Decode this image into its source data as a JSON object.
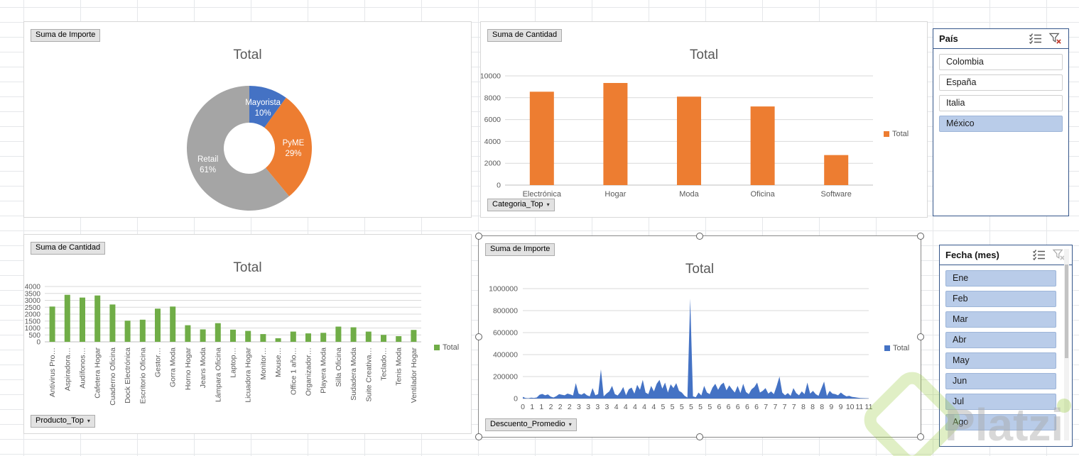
{
  "colors": {
    "accent_blue": "#4472C4",
    "accent_orange": "#ED7D31",
    "accent_gray": "#A5A5A5",
    "accent_green": "#70AD47",
    "axis_text": "#595959",
    "chart_grid": "#D9D9D9",
    "slicer_selected_fill": "#B9CCE9",
    "slicer_border": "#35568A"
  },
  "chart_data": [
    {
      "id": "segment-donut-chart",
      "type": "pie",
      "donut": true,
      "title": "Total",
      "field_button": "Suma de Importe",
      "categories": [
        "Mayorista",
        "PyME",
        "Retail"
      ],
      "values_pct": [
        10,
        29,
        61
      ],
      "slice_colors": [
        "#4472C4",
        "#ED7D31",
        "#A5A5A5"
      ],
      "data_labels": [
        "Mayorista 10%",
        "PyME 29%",
        "Retail 61%"
      ],
      "legend_position": "none"
    },
    {
      "id": "category-bar-chart",
      "type": "bar",
      "title": "Total",
      "field_button": "Suma de Cantidad",
      "axis_field_button": "Categoria_Top",
      "categories": [
        "Electrónica",
        "Hogar",
        "Moda",
        "Oficina",
        "Software"
      ],
      "values": [
        8550,
        9350,
        8100,
        7200,
        2750
      ],
      "ylim": [
        0,
        10000
      ],
      "ytick_step": 2000,
      "grid": true,
      "legend": "Total",
      "legend_position": "right",
      "color": "#ED7D31"
    },
    {
      "id": "product-bar-chart",
      "type": "bar",
      "title": "Total",
      "field_button": "Suma de Cantidad",
      "axis_field_button": "Producto_Top",
      "categories": [
        "Antivirus Pro…",
        "Aspiradora…",
        "Audífonos…",
        "Cafetera Hogar",
        "Cuaderno Oficina",
        "Dock Electrónica",
        "Escritorio Oficina",
        "Gestor…",
        "Gorra Moda",
        "Horno Hogar",
        "Jeans Moda",
        "Lámpara Oficina",
        "Laptop…",
        "Licuadora Hogar",
        "Monitor…",
        "Mouse…",
        "Office 1 año…",
        "Organizador…",
        "Playera Moda",
        "Silla Oficina",
        "Sudadera Moda",
        "Suite Creativa…",
        "Teclado…",
        "Tenis Moda",
        "Ventilador Hogar"
      ],
      "values": [
        2550,
        3400,
        3200,
        3350,
        2700,
        1530,
        1600,
        2400,
        2550,
        1200,
        900,
        1350,
        880,
        790,
        560,
        260,
        740,
        610,
        650,
        1100,
        1050,
        740,
        500,
        410,
        860
      ],
      "ylim": [
        0,
        4000
      ],
      "ytick_step": 500,
      "grid": true,
      "legend": "Total",
      "legend_position": "right",
      "color": "#70AD47",
      "rotated_labels": true
    },
    {
      "id": "discount-area-chart",
      "type": "area",
      "title": "Total",
      "field_button": "Suma de Importe",
      "axis_field_button": "Descuento_Promedio",
      "x_tick_labels": [
        "0",
        "1",
        "1",
        "2",
        "2",
        "2",
        "3",
        "3",
        "3",
        "3",
        "4",
        "4",
        "4",
        "4",
        "4",
        "5",
        "5",
        "5",
        "5",
        "5",
        "5",
        "6",
        "6",
        "6",
        "6",
        "6",
        "7",
        "7",
        "7",
        "7",
        "8",
        "8",
        "8",
        "9",
        "9",
        "10",
        "11",
        "11"
      ],
      "values": [
        15000,
        5000,
        3000,
        8000,
        6000,
        10000,
        35000,
        42000,
        30000,
        38000,
        18000,
        10000,
        22000,
        40000,
        35000,
        30000,
        45000,
        38000,
        28000,
        140000,
        45000,
        35000,
        50000,
        30000,
        20000,
        95000,
        30000,
        40000,
        265000,
        20000,
        45000,
        65000,
        115000,
        40000,
        28000,
        60000,
        105000,
        30000,
        85000,
        100000,
        45000,
        125000,
        80000,
        170000,
        55000,
        40000,
        115000,
        65000,
        135000,
        170000,
        90000,
        145000,
        55000,
        130000,
        95000,
        140000,
        70000,
        55000,
        25000,
        10000,
        910000,
        20000,
        12000,
        55000,
        28000,
        115000,
        55000,
        40000,
        100000,
        135000,
        80000,
        125000,
        145000,
        75000,
        120000,
        85000,
        55000,
        115000,
        50000,
        135000,
        60000,
        40000,
        85000,
        105000,
        145000,
        55000,
        70000,
        95000,
        45000,
        65000,
        40000,
        115000,
        200000,
        55000,
        30000,
        50000,
        25000,
        95000,
        50000,
        30000,
        65000,
        40000,
        145000,
        45000,
        70000,
        40000,
        25000,
        90000,
        155000,
        25000,
        70000,
        45000,
        40000,
        30000,
        55000,
        35000,
        20000,
        25000,
        15000,
        12000,
        8000,
        5000,
        4000,
        3000,
        2000
      ],
      "ylim": [
        0,
        1000000
      ],
      "ytick_step": 200000,
      "grid": true,
      "legend": "Total",
      "legend_position": "right",
      "color": "#4472C4",
      "selected": true
    }
  ],
  "slicers": [
    {
      "title": "País",
      "clear_filter_enabled": true,
      "scrollbar": false,
      "items": [
        {
          "label": "Colombia",
          "selected": false
        },
        {
          "label": "España",
          "selected": false
        },
        {
          "label": "Italia",
          "selected": false
        },
        {
          "label": "México",
          "selected": true
        }
      ]
    },
    {
      "title": "Fecha (mes)",
      "clear_filter_enabled": false,
      "scrollbar": true,
      "items": [
        {
          "label": "Ene",
          "selected": true
        },
        {
          "label": "Feb",
          "selected": true
        },
        {
          "label": "Mar",
          "selected": true
        },
        {
          "label": "Abr",
          "selected": true
        },
        {
          "label": "May",
          "selected": true
        },
        {
          "label": "Jun",
          "selected": true
        },
        {
          "label": "Jul",
          "selected": true
        },
        {
          "label": "Ago",
          "selected": true
        }
      ]
    }
  ],
  "watermark": {
    "text": "Platzi"
  }
}
